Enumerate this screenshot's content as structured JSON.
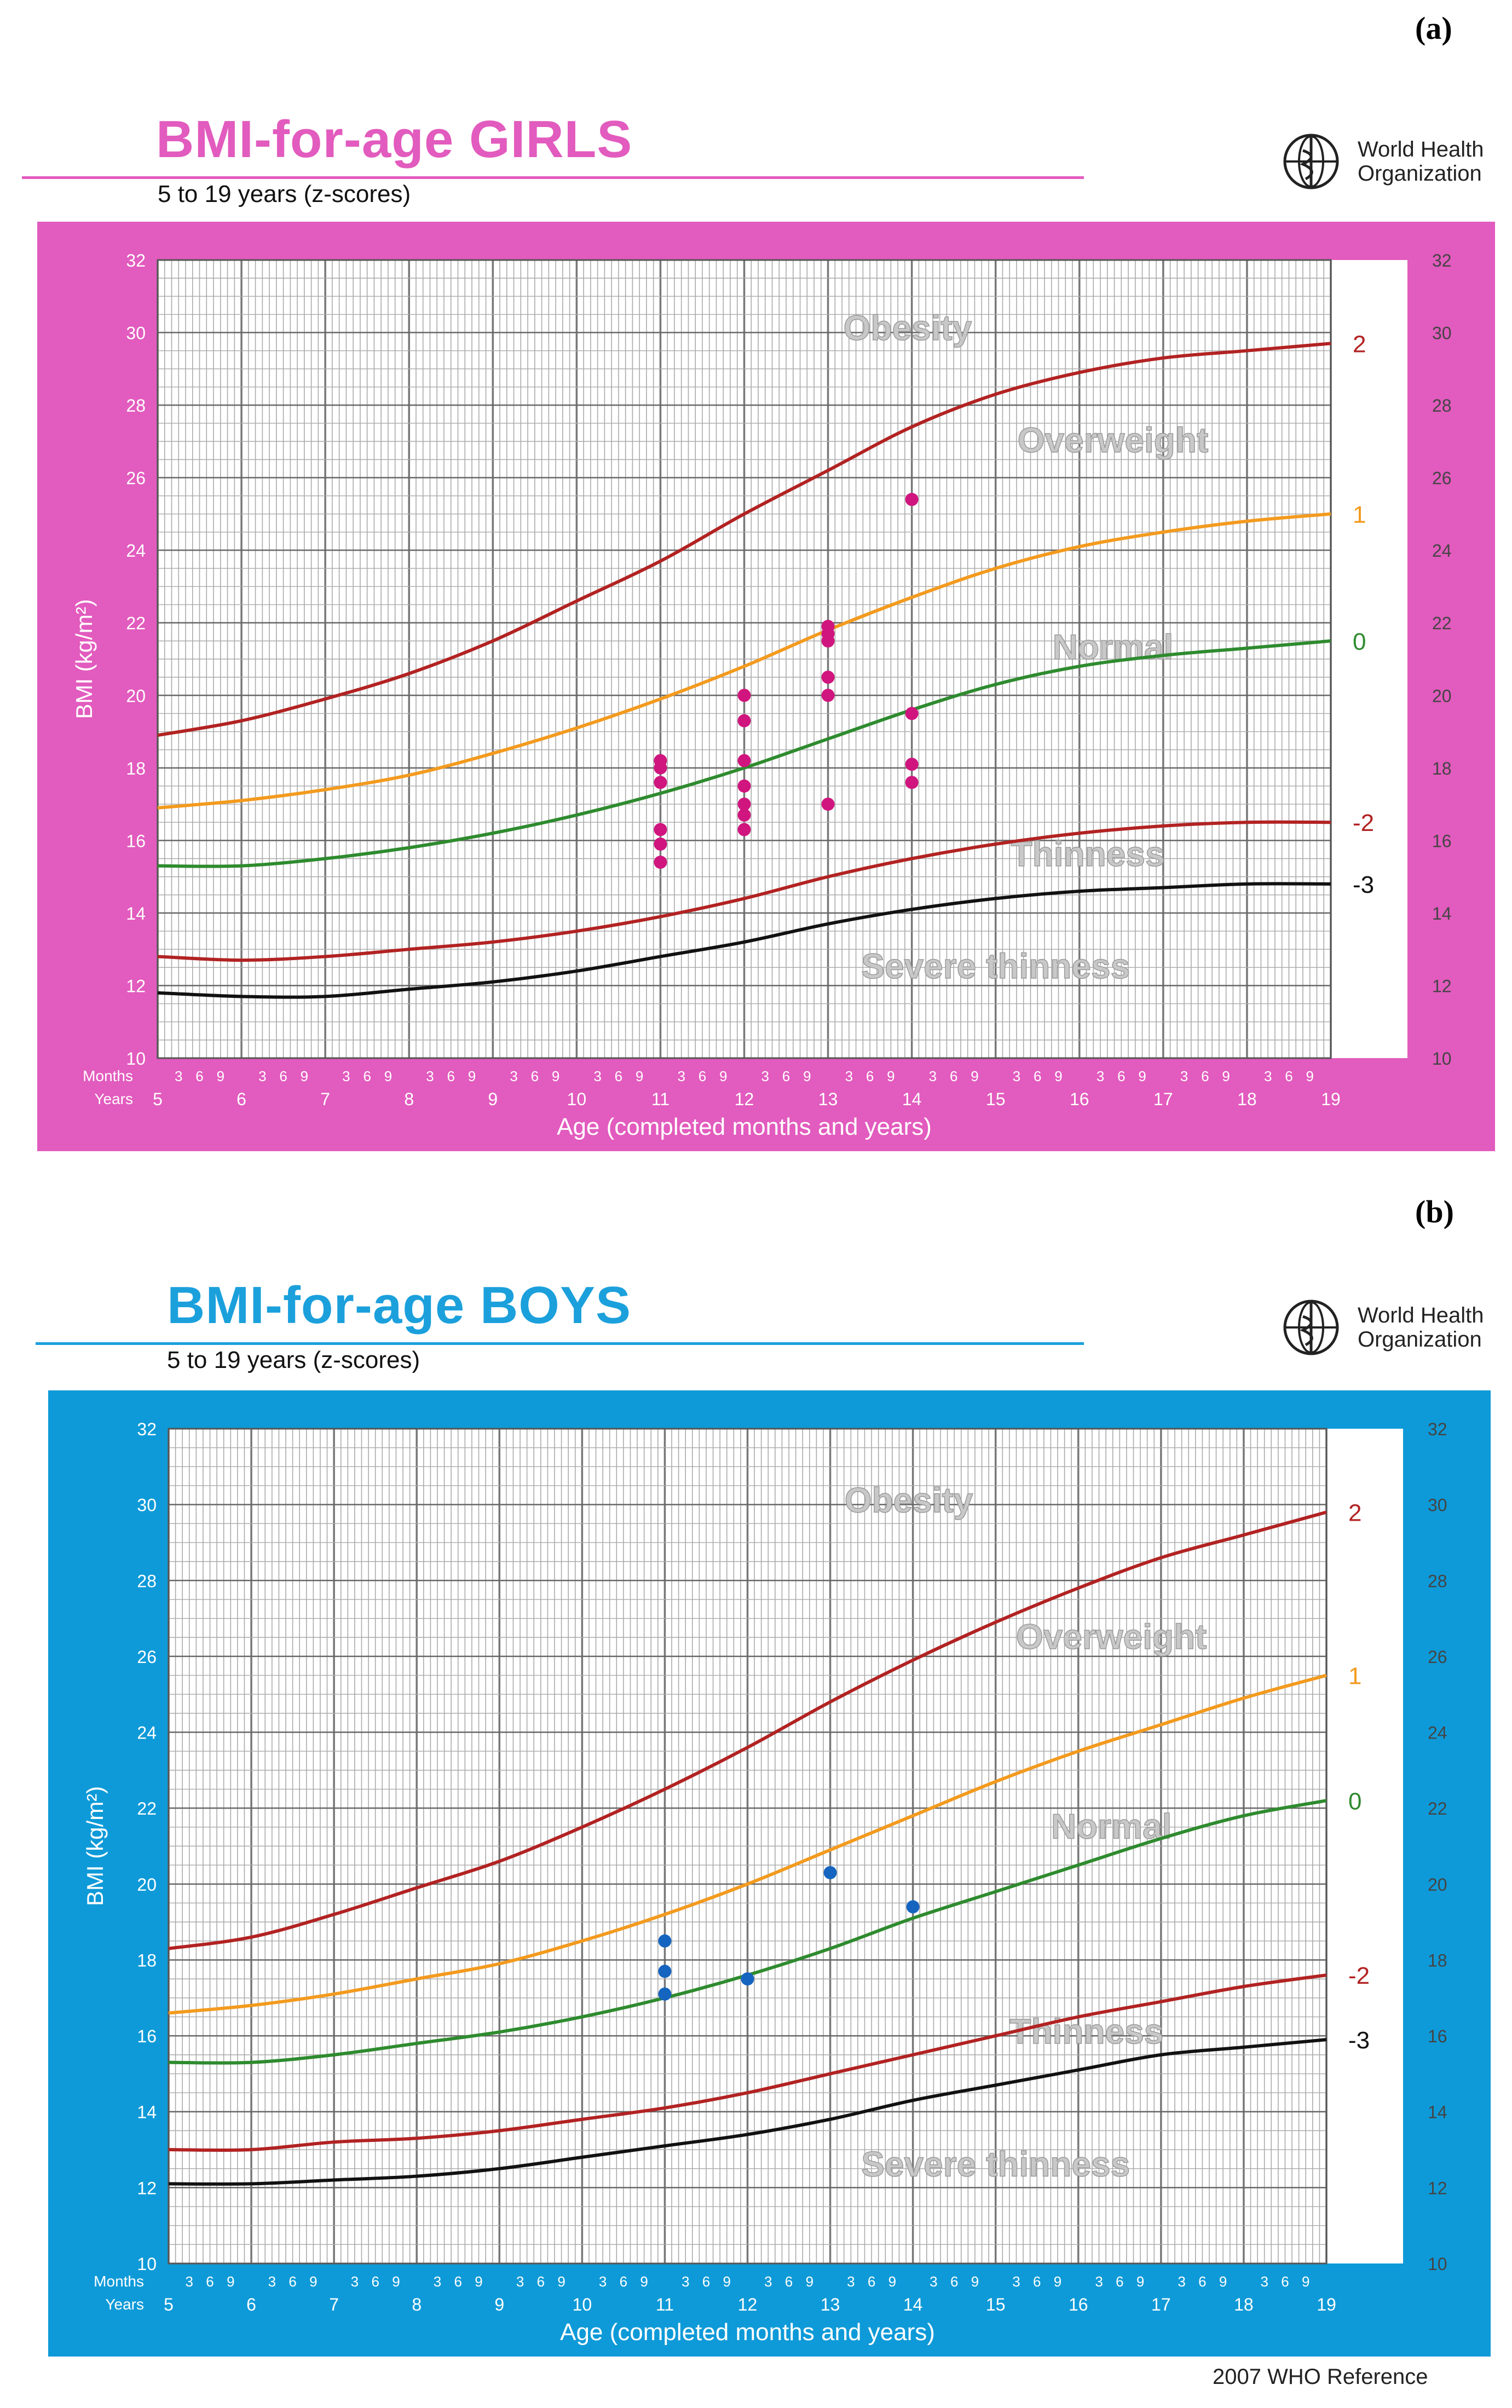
{
  "panels": [
    {
      "id": "a",
      "panel_label": "(a)",
      "title": "BMI-for-age  GIRLS",
      "subtitle": "5 to 19 years (z-scores)",
      "logo_text": [
        "World Health",
        "Organization"
      ],
      "colors": {
        "accent": "#E25BBE",
        "rule": "#E25BBE",
        "points": "#D0157E",
        "frame": "#E25BBE"
      }
    },
    {
      "id": "b",
      "panel_label": "(b)",
      "title": "BMI-for-age  BOYS",
      "subtitle": "5 to 19 years (z-scores)",
      "logo_text": [
        "World Health",
        "Organization"
      ],
      "colors": {
        "accent": "#1BA0DC",
        "rule": "#1BA0DC",
        "points": "#1565C0",
        "frame": "#0E9AD8"
      }
    }
  ],
  "footer": "2007  WHO Reference",
  "chart_data": [
    {
      "type": "line",
      "title": "BMI-for-age  GIRLS",
      "ylabel": "BMI (kg/m²)",
      "xlabel": "Age (completed months and years)",
      "xlim": [
        5,
        19
      ],
      "ylim": [
        10,
        32
      ],
      "x_ticks": [
        5,
        6,
        7,
        8,
        9,
        10,
        11,
        12,
        13,
        14,
        15,
        16,
        17,
        18,
        19
      ],
      "y_ticks": [
        10,
        12,
        14,
        16,
        18,
        20,
        22,
        24,
        26,
        28,
        30,
        32
      ],
      "month_ticks": [
        "3",
        "6",
        "9"
      ],
      "row_labels": {
        "months": "Months",
        "years": "Years"
      },
      "region_labels": [
        {
          "text": "Obesity",
          "x": 13.95,
          "y": 29.8
        },
        {
          "text": "Overweight",
          "x": 16.4,
          "y": 26.7
        },
        {
          "text": "Normal",
          "x": 16.4,
          "y": 21.0
        },
        {
          "text": "Thinness",
          "x": 16.1,
          "y": 15.3
        },
        {
          "text": "Severe thinness",
          "x": 15.0,
          "y": 12.2
        }
      ],
      "series": [
        {
          "name": "2",
          "color": "#B22222",
          "x": [
            5,
            6,
            7,
            8,
            9,
            10,
            11,
            12,
            13,
            14,
            15,
            16,
            17,
            18,
            19
          ],
          "y": [
            18.9,
            19.3,
            19.9,
            20.6,
            21.5,
            22.6,
            23.7,
            25.0,
            26.2,
            27.4,
            28.3,
            28.9,
            29.3,
            29.5,
            29.7
          ]
        },
        {
          "name": "1",
          "color": "#F39A1E",
          "x": [
            5,
            6,
            7,
            8,
            9,
            10,
            11,
            12,
            13,
            14,
            15,
            16,
            17,
            18,
            19
          ],
          "y": [
            16.9,
            17.1,
            17.4,
            17.8,
            18.4,
            19.1,
            19.9,
            20.8,
            21.8,
            22.7,
            23.5,
            24.1,
            24.5,
            24.8,
            25.0
          ]
        },
        {
          "name": "0",
          "color": "#2E8B2E",
          "x": [
            5,
            6,
            7,
            8,
            9,
            10,
            11,
            12,
            13,
            14,
            15,
            16,
            17,
            18,
            19
          ],
          "y": [
            15.3,
            15.3,
            15.5,
            15.8,
            16.2,
            16.7,
            17.3,
            18.0,
            18.8,
            19.6,
            20.3,
            20.8,
            21.1,
            21.3,
            21.5
          ]
        },
        {
          "name": "-2",
          "color": "#B22222",
          "x": [
            5,
            6,
            7,
            8,
            9,
            10,
            11,
            12,
            13,
            14,
            15,
            16,
            17,
            18,
            19
          ],
          "y": [
            12.8,
            12.7,
            12.8,
            13.0,
            13.2,
            13.5,
            13.9,
            14.4,
            15.0,
            15.5,
            15.9,
            16.2,
            16.4,
            16.5,
            16.5
          ]
        },
        {
          "name": "-3",
          "color": "#111111",
          "x": [
            5,
            6,
            7,
            8,
            9,
            10,
            11,
            12,
            13,
            14,
            15,
            16,
            17,
            18,
            19
          ],
          "y": [
            11.8,
            11.7,
            11.7,
            11.9,
            12.1,
            12.4,
            12.8,
            13.2,
            13.7,
            14.1,
            14.4,
            14.6,
            14.7,
            14.8,
            14.8
          ]
        }
      ],
      "points": [
        {
          "x": 11,
          "y": 18.2
        },
        {
          "x": 11,
          "y": 18.0
        },
        {
          "x": 11,
          "y": 17.6
        },
        {
          "x": 11,
          "y": 16.3
        },
        {
          "x": 11,
          "y": 15.9
        },
        {
          "x": 11,
          "y": 15.4
        },
        {
          "x": 12,
          "y": 20.0
        },
        {
          "x": 12,
          "y": 19.3
        },
        {
          "x": 12,
          "y": 18.2
        },
        {
          "x": 12,
          "y": 17.5
        },
        {
          "x": 12,
          "y": 17.0
        },
        {
          "x": 12,
          "y": 16.7
        },
        {
          "x": 12,
          "y": 16.3
        },
        {
          "x": 13,
          "y": 21.9
        },
        {
          "x": 13,
          "y": 21.7
        },
        {
          "x": 13,
          "y": 21.5
        },
        {
          "x": 13,
          "y": 20.5
        },
        {
          "x": 13,
          "y": 20.0
        },
        {
          "x": 13,
          "y": 17.0
        },
        {
          "x": 14,
          "y": 25.4
        },
        {
          "x": 14,
          "y": 19.5
        },
        {
          "x": 14,
          "y": 18.1
        },
        {
          "x": 14,
          "y": 17.6
        }
      ]
    },
    {
      "type": "line",
      "title": "BMI-for-age  BOYS",
      "ylabel": "BMI (kg/m²)",
      "xlabel": "Age (completed months and years)",
      "xlim": [
        5,
        19
      ],
      "ylim": [
        10,
        32
      ],
      "x_ticks": [
        5,
        6,
        7,
        8,
        9,
        10,
        11,
        12,
        13,
        14,
        15,
        16,
        17,
        18,
        19
      ],
      "y_ticks": [
        10,
        12,
        14,
        16,
        18,
        20,
        22,
        24,
        26,
        28,
        30,
        32
      ],
      "month_ticks": [
        "3",
        "6",
        "9"
      ],
      "row_labels": {
        "months": "Months",
        "years": "Years"
      },
      "region_labels": [
        {
          "text": "Obesity",
          "x": 13.95,
          "y": 29.8
        },
        {
          "text": "Overweight",
          "x": 16.4,
          "y": 26.2
        },
        {
          "text": "Normal",
          "x": 16.4,
          "y": 21.2
        },
        {
          "text": "Thinness",
          "x": 16.1,
          "y": 15.8
        },
        {
          "text": "Severe thinness",
          "x": 15.0,
          "y": 12.3
        }
      ],
      "series": [
        {
          "name": "2",
          "color": "#B22222",
          "x": [
            5,
            6,
            7,
            8,
            9,
            10,
            11,
            12,
            13,
            14,
            15,
            16,
            17,
            18,
            19
          ],
          "y": [
            18.3,
            18.6,
            19.2,
            19.9,
            20.6,
            21.5,
            22.5,
            23.6,
            24.8,
            25.9,
            26.9,
            27.8,
            28.6,
            29.2,
            29.8
          ]
        },
        {
          "name": "1",
          "color": "#F39A1E",
          "x": [
            5,
            6,
            7,
            8,
            9,
            10,
            11,
            12,
            13,
            14,
            15,
            16,
            17,
            18,
            19
          ],
          "y": [
            16.6,
            16.8,
            17.1,
            17.5,
            17.9,
            18.5,
            19.2,
            20.0,
            20.9,
            21.8,
            22.7,
            23.5,
            24.2,
            24.9,
            25.5
          ]
        },
        {
          "name": "0",
          "color": "#2E8B2E",
          "x": [
            5,
            6,
            7,
            8,
            9,
            10,
            11,
            12,
            13,
            14,
            15,
            16,
            17,
            18,
            19
          ],
          "y": [
            15.3,
            15.3,
            15.5,
            15.8,
            16.1,
            16.5,
            17.0,
            17.6,
            18.3,
            19.1,
            19.8,
            20.5,
            21.2,
            21.8,
            22.2
          ]
        },
        {
          "name": "-2",
          "color": "#B22222",
          "x": [
            5,
            6,
            7,
            8,
            9,
            10,
            11,
            12,
            13,
            14,
            15,
            16,
            17,
            18,
            19
          ],
          "y": [
            13.0,
            13.0,
            13.2,
            13.3,
            13.5,
            13.8,
            14.1,
            14.5,
            15.0,
            15.5,
            16.0,
            16.5,
            16.9,
            17.3,
            17.6
          ]
        },
        {
          "name": "-3",
          "color": "#111111",
          "x": [
            5,
            6,
            7,
            8,
            9,
            10,
            11,
            12,
            13,
            14,
            15,
            16,
            17,
            18,
            19
          ],
          "y": [
            12.1,
            12.1,
            12.2,
            12.3,
            12.5,
            12.8,
            13.1,
            13.4,
            13.8,
            14.3,
            14.7,
            15.1,
            15.5,
            15.7,
            15.9
          ]
        }
      ],
      "points": [
        {
          "x": 11,
          "y": 18.5
        },
        {
          "x": 11,
          "y": 17.7
        },
        {
          "x": 11,
          "y": 17.1
        },
        {
          "x": 12,
          "y": 17.5
        },
        {
          "x": 13,
          "y": 20.3
        },
        {
          "x": 14,
          "y": 19.4
        }
      ]
    }
  ]
}
